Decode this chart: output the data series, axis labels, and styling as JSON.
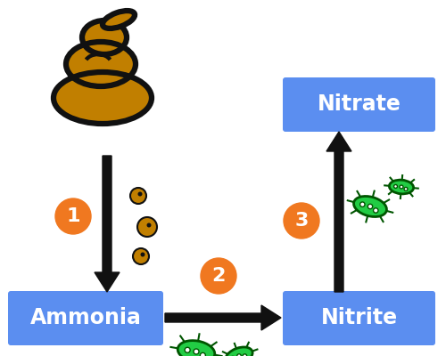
{
  "background_color": "#ffffff",
  "box_color": "#5b8ef0",
  "box_text_color": "#ffffff",
  "orange_color": "#f07820",
  "arrow_color": "#111111",
  "poop_fill": "#c17f00",
  "poop_outline": "#111111",
  "bacteria_fill": "#22cc44",
  "bacteria_outline": "#005500",
  "bubble_fill": "#c17f00",
  "bubble_outline": "#111111",
  "labels": {
    "ammonia": "Ammonia",
    "nitrite": "Nitrite",
    "nitrate": "Nitrate"
  },
  "step_numbers": [
    "1",
    "2",
    "3"
  ],
  "figsize": [
    5.0,
    4.0
  ],
  "dpi": 100
}
